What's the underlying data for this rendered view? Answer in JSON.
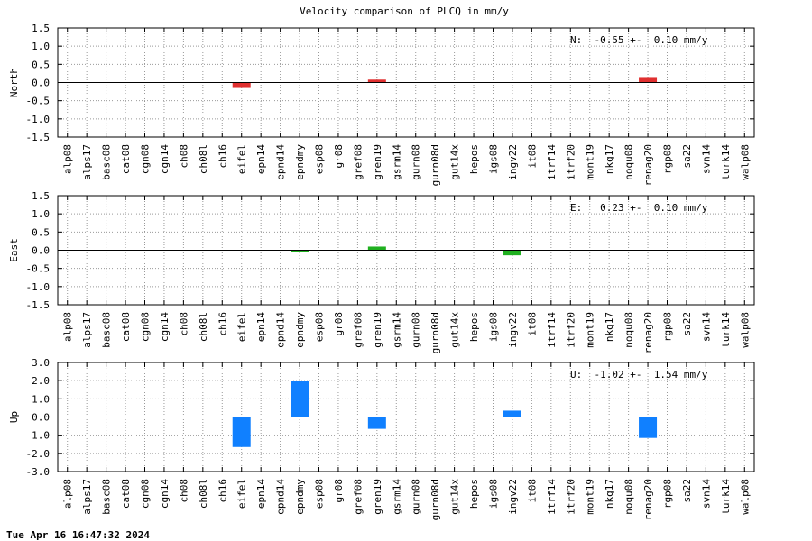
{
  "chart_data": {
    "type": "bar",
    "title": "Velocity comparison of PLCQ in mm/y",
    "footer": "Tue Apr 16 16:47:32 2024",
    "categories": [
      "alp08",
      "alps17",
      "basc08",
      "cat08",
      "cgn08",
      "cgn14",
      "ch08",
      "ch08l",
      "ch16",
      "eifel",
      "epn14",
      "epnd14",
      "epndmy",
      "esp08",
      "gr08",
      "gref08",
      "gren19",
      "gsrm14",
      "gurn08",
      "gurn08d",
      "gut14x",
      "hepos",
      "igs08",
      "ingv22",
      "it08",
      "itrf14",
      "itrf20",
      "mont19",
      "nkg17",
      "noqu08",
      "renag20",
      "rgp08",
      "sa22",
      "svn14",
      "turk14",
      "walp08"
    ],
    "panels": [
      {
        "ylabel": "North",
        "ylim": [
          -1.5,
          1.5
        ],
        "ticks": [
          "1.5",
          "1.0",
          "0.5",
          "0.0",
          "-0.5",
          "-1.0",
          "-1.5"
        ],
        "color": "#e03030",
        "annotation": "N:  -0.55 +-  0.10 mm/y",
        "values": [
          0,
          0,
          0,
          0,
          0,
          0,
          0,
          0,
          0,
          -0.15,
          0,
          0,
          0,
          0,
          0,
          0,
          0.08,
          0,
          0,
          0,
          0,
          0,
          0,
          0,
          0,
          0,
          0,
          0,
          0,
          0,
          0.15,
          0,
          0,
          0,
          0,
          0
        ]
      },
      {
        "ylabel": "East",
        "ylim": [
          -1.5,
          1.5
        ],
        "ticks": [
          "1.5",
          "1.0",
          "0.5",
          "0.0",
          "-0.5",
          "-1.0",
          "-1.5"
        ],
        "color": "#20b020",
        "annotation": "E:   0.23 +-  0.10 mm/y",
        "values": [
          0,
          0,
          0,
          0,
          0,
          0,
          0,
          0,
          0,
          0,
          0,
          0,
          -0.05,
          0,
          0,
          0,
          0.1,
          0,
          0,
          0,
          0,
          0,
          0,
          -0.14,
          0,
          0,
          0,
          0,
          0,
          0,
          0,
          0,
          0,
          0,
          0,
          0
        ]
      },
      {
        "ylabel": "Up",
        "ylim": [
          -3.0,
          3.0
        ],
        "ticks": [
          "3.0",
          "2.0",
          "1.0",
          "0.0",
          "-1.0",
          "-2.0",
          "-3.0"
        ],
        "color": "#1080ff",
        "annotation": "U:  -1.02 +-  1.54 mm/y",
        "values": [
          0,
          0,
          0,
          0,
          0,
          0,
          0,
          0,
          0,
          -1.65,
          0,
          0,
          2.0,
          0,
          0,
          0,
          -0.65,
          0,
          0,
          0,
          0,
          0,
          0,
          0.35,
          0,
          0,
          0,
          0,
          0,
          0,
          -1.15,
          0,
          0,
          0,
          0,
          0
        ]
      }
    ],
    "grid": true,
    "legend": "none"
  }
}
